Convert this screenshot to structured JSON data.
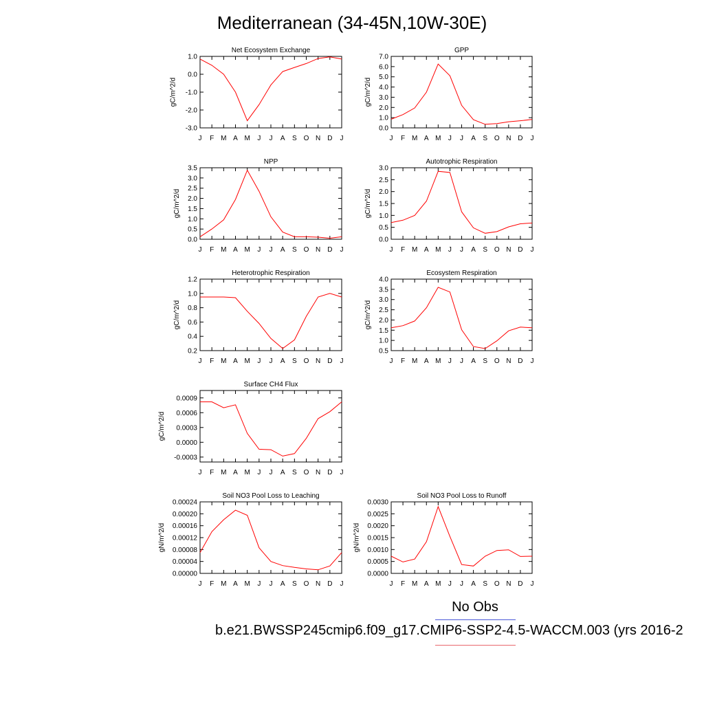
{
  "title": "Mediterranean (34-45N,10W-30E)",
  "legend": {
    "obs_label": "No Obs",
    "case_label": "b.e21.BWSSP245cmip6.f09_g17.CMIP6-SSP2-4.5-WACCM.003 (yrs 2016-2",
    "obs_color": "#4a58d8",
    "case_color": "#e8666c"
  },
  "line_color": "#ff0000",
  "chart_data": [
    {
      "type": "line",
      "title": "Net Ecosystem Exchange",
      "ylabel": "gC/m^2/d",
      "categories": [
        "J",
        "F",
        "M",
        "A",
        "M",
        "J",
        "J",
        "A",
        "S",
        "O",
        "N",
        "D",
        "J"
      ],
      "values": [
        0.85,
        0.5,
        0.0,
        -1.0,
        -2.6,
        -1.7,
        -0.6,
        0.15,
        0.38,
        0.6,
        0.88,
        0.97,
        0.85
      ],
      "ylim": [
        -3.0,
        1.0
      ],
      "yticks": [
        -3.0,
        -2.0,
        -1.0,
        0.0,
        1.0
      ],
      "ytick_labels": [
        "-3.0",
        "-2.0",
        "-1.0",
        "0.0",
        "1.0"
      ]
    },
    {
      "type": "line",
      "title": "GPP",
      "ylabel": "gC/m^2/d",
      "categories": [
        "J",
        "F",
        "M",
        "A",
        "M",
        "J",
        "J",
        "A",
        "S",
        "O",
        "N",
        "D",
        "J"
      ],
      "values": [
        0.85,
        1.3,
        1.95,
        3.5,
        6.25,
        5.1,
        2.2,
        0.8,
        0.35,
        0.42,
        0.6,
        0.7,
        0.82
      ],
      "ylim": [
        0.0,
        7.0
      ],
      "yticks": [
        0.0,
        1.0,
        2.0,
        3.0,
        4.0,
        5.0,
        6.0,
        7.0
      ],
      "ytick_labels": [
        "0.0",
        "1.0",
        "2.0",
        "3.0",
        "4.0",
        "5.0",
        "6.0",
        "7.0"
      ]
    },
    {
      "type": "line",
      "title": "NPP",
      "ylabel": "gC/m^2/d",
      "categories": [
        "J",
        "F",
        "M",
        "A",
        "M",
        "J",
        "J",
        "A",
        "S",
        "O",
        "N",
        "D",
        "J"
      ],
      "values": [
        0.12,
        0.5,
        0.95,
        1.95,
        3.38,
        2.35,
        1.1,
        0.35,
        0.12,
        0.12,
        0.1,
        0.05,
        0.12
      ],
      "ylim": [
        0.0,
        3.5
      ],
      "yticks": [
        0.0,
        0.5,
        1.0,
        1.5,
        2.0,
        2.5,
        3.0,
        3.5
      ],
      "ytick_labels": [
        "0.0",
        "0.5",
        "1.0",
        "1.5",
        "2.0",
        "2.5",
        "3.0",
        "3.5"
      ]
    },
    {
      "type": "line",
      "title": "Autotrophic Respiration",
      "ylabel": "gC/m^2/d",
      "categories": [
        "J",
        "F",
        "M",
        "A",
        "M",
        "J",
        "J",
        "A",
        "S",
        "O",
        "N",
        "D",
        "J"
      ],
      "values": [
        0.7,
        0.8,
        1.0,
        1.6,
        2.85,
        2.8,
        1.15,
        0.48,
        0.25,
        0.32,
        0.52,
        0.65,
        0.68
      ],
      "ylim": [
        0.0,
        3.0
      ],
      "yticks": [
        0.0,
        0.5,
        1.0,
        1.5,
        2.0,
        2.5,
        3.0
      ],
      "ytick_labels": [
        "0.0",
        "0.5",
        "1.0",
        "1.5",
        "2.0",
        "2.5",
        "3.0"
      ]
    },
    {
      "type": "line",
      "title": "Heterotrophic Respiration",
      "ylabel": "gC/m^2/d",
      "categories": [
        "J",
        "F",
        "M",
        "A",
        "M",
        "J",
        "J",
        "A",
        "S",
        "O",
        "N",
        "D",
        "J"
      ],
      "values": [
        0.95,
        0.95,
        0.95,
        0.94,
        0.75,
        0.58,
        0.37,
        0.23,
        0.35,
        0.68,
        0.95,
        1.0,
        0.95
      ],
      "ylim": [
        0.2,
        1.2
      ],
      "yticks": [
        0.2,
        0.4,
        0.6,
        0.8,
        1.0,
        1.2
      ],
      "ytick_labels": [
        "0.2",
        "0.4",
        "0.6",
        "0.8",
        "1.0",
        "1.2"
      ]
    },
    {
      "type": "line",
      "title": "Ecosystem Respiration",
      "ylabel": "gC/m^2/d",
      "categories": [
        "J",
        "F",
        "M",
        "A",
        "M",
        "J",
        "J",
        "A",
        "S",
        "O",
        "N",
        "D",
        "J"
      ],
      "values": [
        1.62,
        1.72,
        1.95,
        2.6,
        3.6,
        3.37,
        1.52,
        0.7,
        0.6,
        0.98,
        1.47,
        1.65,
        1.62
      ],
      "ylim": [
        0.5,
        4.0
      ],
      "yticks": [
        0.5,
        1.0,
        1.5,
        2.0,
        2.5,
        3.0,
        3.5,
        4.0
      ],
      "ytick_labels": [
        "0.5",
        "1.0",
        "1.5",
        "2.0",
        "2.5",
        "3.0",
        "3.5",
        "4.0"
      ]
    },
    {
      "type": "line",
      "title": "Surface CH4 Flux",
      "ylabel": "gC/m^2/d",
      "categories": [
        "J",
        "F",
        "M",
        "A",
        "M",
        "J",
        "J",
        "A",
        "S",
        "O",
        "N",
        "D",
        "J"
      ],
      "values": [
        0.00082,
        0.00082,
        0.0007,
        0.00076,
        0.00018,
        -0.00014,
        -0.00015,
        -0.00028,
        -0.00023,
        8e-05,
        0.00048,
        0.00062,
        0.00082
      ],
      "ylim": [
        -0.0004,
        0.00105
      ],
      "yticks": [
        -0.0003,
        0.0,
        0.0003,
        0.0006,
        0.0009
      ],
      "ytick_labels": [
        "-0.0003",
        "0.0000",
        "0.0003",
        "0.0006",
        "0.0009"
      ]
    },
    {
      "type": "line",
      "title": "Soil NO3 Pool Loss to Leaching",
      "ylabel": "gN/m^2/d",
      "categories": [
        "J",
        "F",
        "M",
        "A",
        "M",
        "J",
        "J",
        "A",
        "S",
        "O",
        "N",
        "D",
        "J"
      ],
      "values": [
        7e-05,
        0.00014,
        0.00018,
        0.000212,
        0.000195,
        8.6e-05,
        4e-05,
        2.6e-05,
        2e-05,
        1.5e-05,
        1.2e-05,
        2.5e-05,
        7e-05
      ],
      "ylim": [
        0.0,
        0.00024
      ],
      "yticks": [
        0.0,
        4e-05,
        8e-05,
        0.00012,
        0.00016,
        0.0002,
        0.00024
      ],
      "ytick_labels": [
        "0.00000",
        "0.00004",
        "0.00008",
        "0.00012",
        "0.00016",
        "0.00020",
        "0.00024"
      ]
    },
    {
      "type": "line",
      "title": "Soil NO3 Pool Loss to Runoff",
      "ylabel": "gN/m^2/d",
      "categories": [
        "J",
        "F",
        "M",
        "A",
        "M",
        "J",
        "J",
        "A",
        "S",
        "O",
        "N",
        "D",
        "J"
      ],
      "values": [
        0.00072,
        0.00048,
        0.0006,
        0.00133,
        0.0028,
        0.00155,
        0.00037,
        0.00031,
        0.00072,
        0.00096,
        0.00099,
        0.00071,
        0.00072
      ],
      "ylim": [
        0.0,
        0.003
      ],
      "yticks": [
        0.0,
        0.0005,
        0.001,
        0.0015,
        0.002,
        0.0025,
        0.003
      ],
      "ytick_labels": [
        "0.0000",
        "0.0005",
        "0.0010",
        "0.0015",
        "0.0020",
        "0.0025",
        "0.0030"
      ]
    }
  ]
}
